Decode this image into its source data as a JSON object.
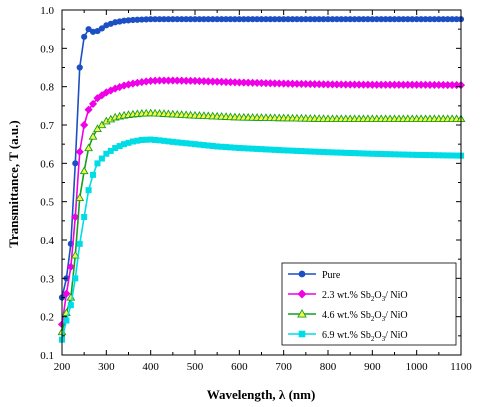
{
  "chart_data": {
    "type": "line",
    "xlabel": "Wavelength, λ (nm)",
    "ylabel": "Transmittance, T (a.u.)",
    "xlim": [
      200,
      1100
    ],
    "ylim": [
      0.1,
      1.0
    ],
    "x_ticks": [
      "200",
      "300",
      "400",
      "500",
      "600",
      "700",
      "800",
      "900",
      "1000",
      "1100"
    ],
    "y_ticks": [
      "0.1",
      "0.2",
      "0.3",
      "0.4",
      "0.5",
      "0.6",
      "0.7",
      "0.8",
      "0.9",
      "1.0"
    ],
    "legend_position": "bottom-right",
    "grid": false,
    "series": [
      {
        "name": "Pure",
        "color": "#1c4fc4",
        "marker": "circle",
        "x": [
          200,
          210,
          220,
          230,
          240,
          250,
          260,
          270,
          280,
          290,
          300,
          320,
          340,
          360,
          380,
          400,
          450,
          500,
          600,
          700,
          800,
          900,
          1000,
          1100
        ],
        "values": [
          0.25,
          0.3,
          0.39,
          0.6,
          0.85,
          0.93,
          0.95,
          0.943,
          0.945,
          0.952,
          0.96,
          0.968,
          0.972,
          0.974,
          0.975,
          0.976,
          0.976,
          0.976,
          0.976,
          0.976,
          0.976,
          0.976,
          0.976,
          0.976
        ]
      },
      {
        "name": "2.3 wt.% Sb2O3/ NiO",
        "legend_main": "2.3 wt.% Sb",
        "legend_sub1": "2",
        "legend_mid": "O",
        "legend_sub2": "3",
        "legend_end": "/ NiO",
        "color": "#f000e6",
        "marker": "diamond",
        "x": [
          200,
          210,
          220,
          230,
          240,
          250,
          260,
          280,
          300,
          320,
          340,
          360,
          380,
          400,
          420,
          450,
          500,
          550,
          600,
          700,
          800,
          900,
          1000,
          1100
        ],
        "values": [
          0.18,
          0.26,
          0.33,
          0.46,
          0.63,
          0.7,
          0.74,
          0.77,
          0.785,
          0.795,
          0.803,
          0.808,
          0.812,
          0.815,
          0.816,
          0.816,
          0.815,
          0.813,
          0.811,
          0.808,
          0.806,
          0.805,
          0.805,
          0.804
        ]
      },
      {
        "name": "4.6 wt.% Sb2O3/ NiO",
        "legend_main": "4.6 wt.% Sb",
        "legend_sub1": "2",
        "legend_mid": "O",
        "legend_sub2": "3",
        "legend_end": "/ NiO",
        "color": "#14a01e",
        "fill": "#f5f54a",
        "marker": "triangle",
        "x": [
          200,
          210,
          220,
          230,
          240,
          250,
          260,
          270,
          280,
          300,
          320,
          340,
          360,
          380,
          400,
          420,
          450,
          500,
          600,
          700,
          800,
          900,
          1000,
          1100
        ],
        "values": [
          0.16,
          0.21,
          0.25,
          0.36,
          0.51,
          0.58,
          0.64,
          0.67,
          0.69,
          0.71,
          0.72,
          0.725,
          0.728,
          0.73,
          0.731,
          0.73,
          0.728,
          0.725,
          0.72,
          0.718,
          0.716,
          0.716,
          0.716,
          0.716
        ]
      },
      {
        "name": "6.9 wt.% Sb2O3/ NiO",
        "legend_main": "6.9 wt.% Sb",
        "legend_sub1": "2",
        "legend_mid": "O",
        "legend_sub2": "3",
        "legend_end": "/ NiO",
        "color": "#00dce6",
        "marker": "square",
        "x": [
          200,
          210,
          220,
          230,
          240,
          250,
          260,
          270,
          280,
          300,
          320,
          340,
          360,
          380,
          400,
          420,
          450,
          500,
          550,
          600,
          700,
          800,
          900,
          1000,
          1100
        ],
        "values": [
          0.14,
          0.19,
          0.23,
          0.3,
          0.39,
          0.46,
          0.53,
          0.57,
          0.6,
          0.625,
          0.64,
          0.65,
          0.657,
          0.661,
          0.662,
          0.66,
          0.656,
          0.65,
          0.644,
          0.64,
          0.634,
          0.629,
          0.625,
          0.622,
          0.62
        ]
      }
    ]
  }
}
